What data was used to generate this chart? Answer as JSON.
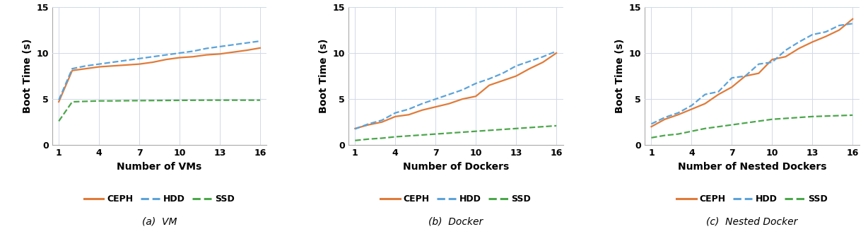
{
  "x_ticks": [
    1,
    4,
    7,
    10,
    13,
    16
  ],
  "x_values": [
    1,
    2,
    3,
    4,
    5,
    6,
    7,
    8,
    9,
    10,
    11,
    12,
    13,
    14,
    15,
    16
  ],
  "vm_ceph": [
    4.7,
    8.1,
    8.3,
    8.5,
    8.6,
    8.7,
    8.8,
    9.0,
    9.3,
    9.5,
    9.6,
    9.8,
    9.9,
    10.1,
    10.3,
    10.55
  ],
  "vm_hdd": [
    4.9,
    8.3,
    8.6,
    8.8,
    9.0,
    9.2,
    9.4,
    9.6,
    9.8,
    10.0,
    10.2,
    10.5,
    10.7,
    10.9,
    11.1,
    11.3
  ],
  "vm_ssd": [
    2.6,
    4.7,
    4.75,
    4.8,
    4.8,
    4.82,
    4.83,
    4.84,
    4.85,
    4.86,
    4.87,
    4.88,
    4.88,
    4.88,
    4.88,
    4.88
  ],
  "docker_ceph": [
    1.8,
    2.2,
    2.5,
    3.1,
    3.3,
    3.8,
    4.15,
    4.5,
    5.0,
    5.3,
    6.5,
    7.0,
    7.5,
    8.3,
    9.0,
    10.0
  ],
  "docker_hdd": [
    1.75,
    2.3,
    2.7,
    3.5,
    3.9,
    4.5,
    5.0,
    5.5,
    6.0,
    6.7,
    7.2,
    7.8,
    8.6,
    9.1,
    9.6,
    10.2
  ],
  "docker_ssd": [
    0.5,
    0.65,
    0.75,
    0.9,
    1.0,
    1.1,
    1.2,
    1.3,
    1.4,
    1.5,
    1.6,
    1.7,
    1.8,
    1.9,
    2.0,
    2.1
  ],
  "ndocker_ceph": [
    2.0,
    2.8,
    3.3,
    3.9,
    4.5,
    5.5,
    6.3,
    7.5,
    7.8,
    9.3,
    9.6,
    10.5,
    11.2,
    11.8,
    12.5,
    13.7
  ],
  "ndocker_hdd": [
    2.3,
    3.0,
    3.5,
    4.3,
    5.5,
    5.8,
    7.3,
    7.5,
    8.8,
    9.0,
    10.3,
    11.2,
    12.0,
    12.3,
    13.0,
    13.2
  ],
  "ndocker_ssd": [
    0.8,
    1.05,
    1.2,
    1.5,
    1.8,
    2.0,
    2.2,
    2.4,
    2.6,
    2.8,
    2.9,
    3.0,
    3.1,
    3.15,
    3.2,
    3.25
  ],
  "color_ceph": "#E07B39",
  "color_hdd": "#5BA3D9",
  "color_ssd": "#4CA64C",
  "ylim": [
    0,
    15
  ],
  "yticks": [
    0,
    5,
    10,
    15
  ],
  "subplot_titles": [
    "(a)  VM",
    "(b)  Docker",
    "(c)  Nested Docker"
  ],
  "xlabels": [
    "Number of VMs",
    "Number of Dockers",
    "Number of Nested Dockers"
  ],
  "ylabel": "Boot Time (s)",
  "legend_labels": [
    "CEPH",
    "HDD",
    "SSD"
  ]
}
